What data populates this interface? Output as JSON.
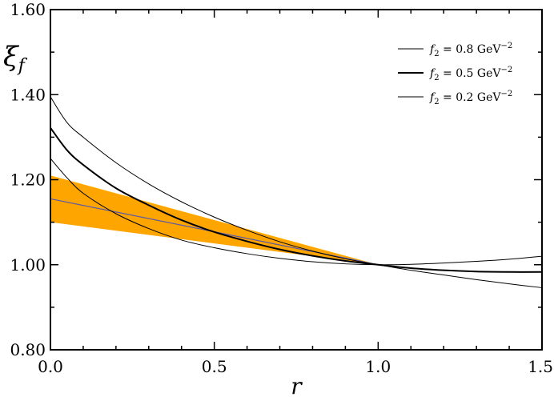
{
  "chart_data": {
    "type": "line",
    "title": "",
    "xlabel": "r",
    "ylabel": "ξ",
    "ylabel_sub": "f",
    "xlim": [
      0,
      1.5
    ],
    "ylim": [
      0.8,
      1.6
    ],
    "x_ticks": [
      {
        "value": 0.0,
        "label": "0.0"
      },
      {
        "value": 0.5,
        "label": "0.5"
      },
      {
        "value": 1.0,
        "label": "1.0"
      },
      {
        "value": 1.5,
        "label": "1.5"
      }
    ],
    "y_ticks": [
      {
        "value": 0.8,
        "label": "0.80"
      },
      {
        "value": 1.0,
        "label": "1.00"
      },
      {
        "value": 1.2,
        "label": "1.20"
      },
      {
        "value": 1.4,
        "label": "1.40"
      },
      {
        "value": 1.6,
        "label": "1.60"
      }
    ],
    "grid": false,
    "legend_position": "top-right",
    "series": [
      {
        "name": "f2 = 0.8 GeV−2",
        "legend": {
          "sym": "f",
          "sub": "2",
          "text": " = 0.8 GeV",
          "sup": "−2"
        },
        "stroke_width": 1,
        "color": "#000000",
        "x": [
          0,
          0.05,
          0.1,
          0.2,
          0.3,
          0.4,
          0.5,
          0.6,
          0.7,
          0.8,
          0.9,
          1.0,
          1.1,
          1.2,
          1.3,
          1.4,
          1.5
        ],
        "y": [
          1.395,
          1.335,
          1.3,
          1.24,
          1.19,
          1.148,
          1.112,
          1.081,
          1.054,
          1.032,
          1.014,
          1.0,
          0.987,
          0.976,
          0.965,
          0.955,
          0.946
        ]
      },
      {
        "name": "f2 = 0.5 GeV−2",
        "legend": {
          "sym": "f",
          "sub": "2",
          "text": " = 0.5 GeV",
          "sup": "−2"
        },
        "stroke_width": 2,
        "color": "#000000",
        "x": [
          0,
          0.05,
          0.1,
          0.2,
          0.3,
          0.4,
          0.5,
          0.6,
          0.7,
          0.8,
          0.9,
          1.0,
          1.1,
          1.2,
          1.3,
          1.4,
          1.5
        ],
        "y": [
          1.322,
          1.27,
          1.235,
          1.18,
          1.14,
          1.105,
          1.077,
          1.055,
          1.036,
          1.021,
          1.009,
          1.0,
          0.992,
          0.987,
          0.984,
          0.983,
          0.983
        ]
      },
      {
        "name": "f2 = 0.2 GeV−2",
        "legend": {
          "sym": "f",
          "sub": "2",
          "text": " = 0.2 GeV",
          "sup": "−2"
        },
        "stroke_width": 1,
        "color": "#000000",
        "x": [
          0,
          0.05,
          0.1,
          0.2,
          0.3,
          0.4,
          0.5,
          0.6,
          0.7,
          0.8,
          0.9,
          1.0,
          1.1,
          1.2,
          1.3,
          1.4,
          1.5
        ],
        "y": [
          1.25,
          1.205,
          1.168,
          1.12,
          1.085,
          1.058,
          1.04,
          1.026,
          1.015,
          1.007,
          1.002,
          1.0,
          1.001,
          1.004,
          1.008,
          1.013,
          1.02
        ]
      }
    ],
    "band": {
      "color": "#ffa500",
      "x": [
        0,
        1.0
      ],
      "upper": [
        1.21,
        1.0
      ],
      "lower": [
        1.1,
        1.0
      ]
    },
    "central_line": {
      "color": "#5a5aa8",
      "x": [
        0,
        1.0
      ],
      "y": [
        1.155,
        1.0
      ]
    }
  }
}
